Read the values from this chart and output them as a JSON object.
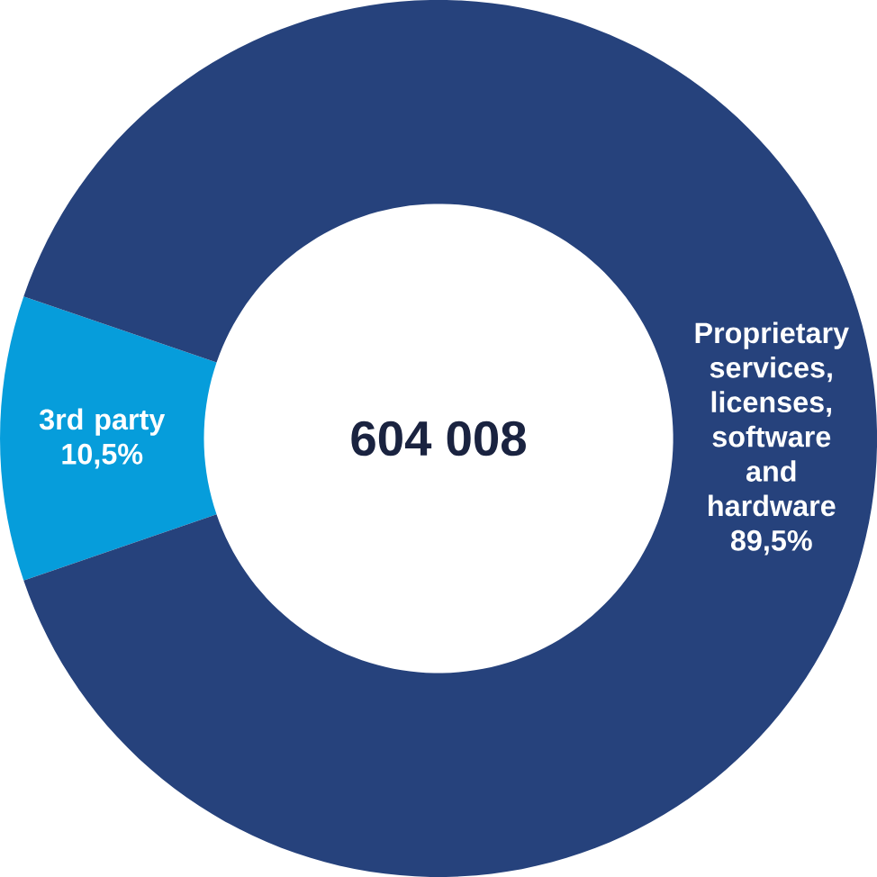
{
  "chart_data": {
    "type": "donut",
    "categories": [
      "3rd party",
      "Proprietary services, licenses, software and hardware"
    ],
    "values": [
      10.5,
      89.5
    ],
    "colors": [
      "#069ddb",
      "#26427c"
    ],
    "value_labels": [
      "10,5%",
      "89,5%"
    ],
    "annotations": [
      "604 008"
    ]
  }
}
